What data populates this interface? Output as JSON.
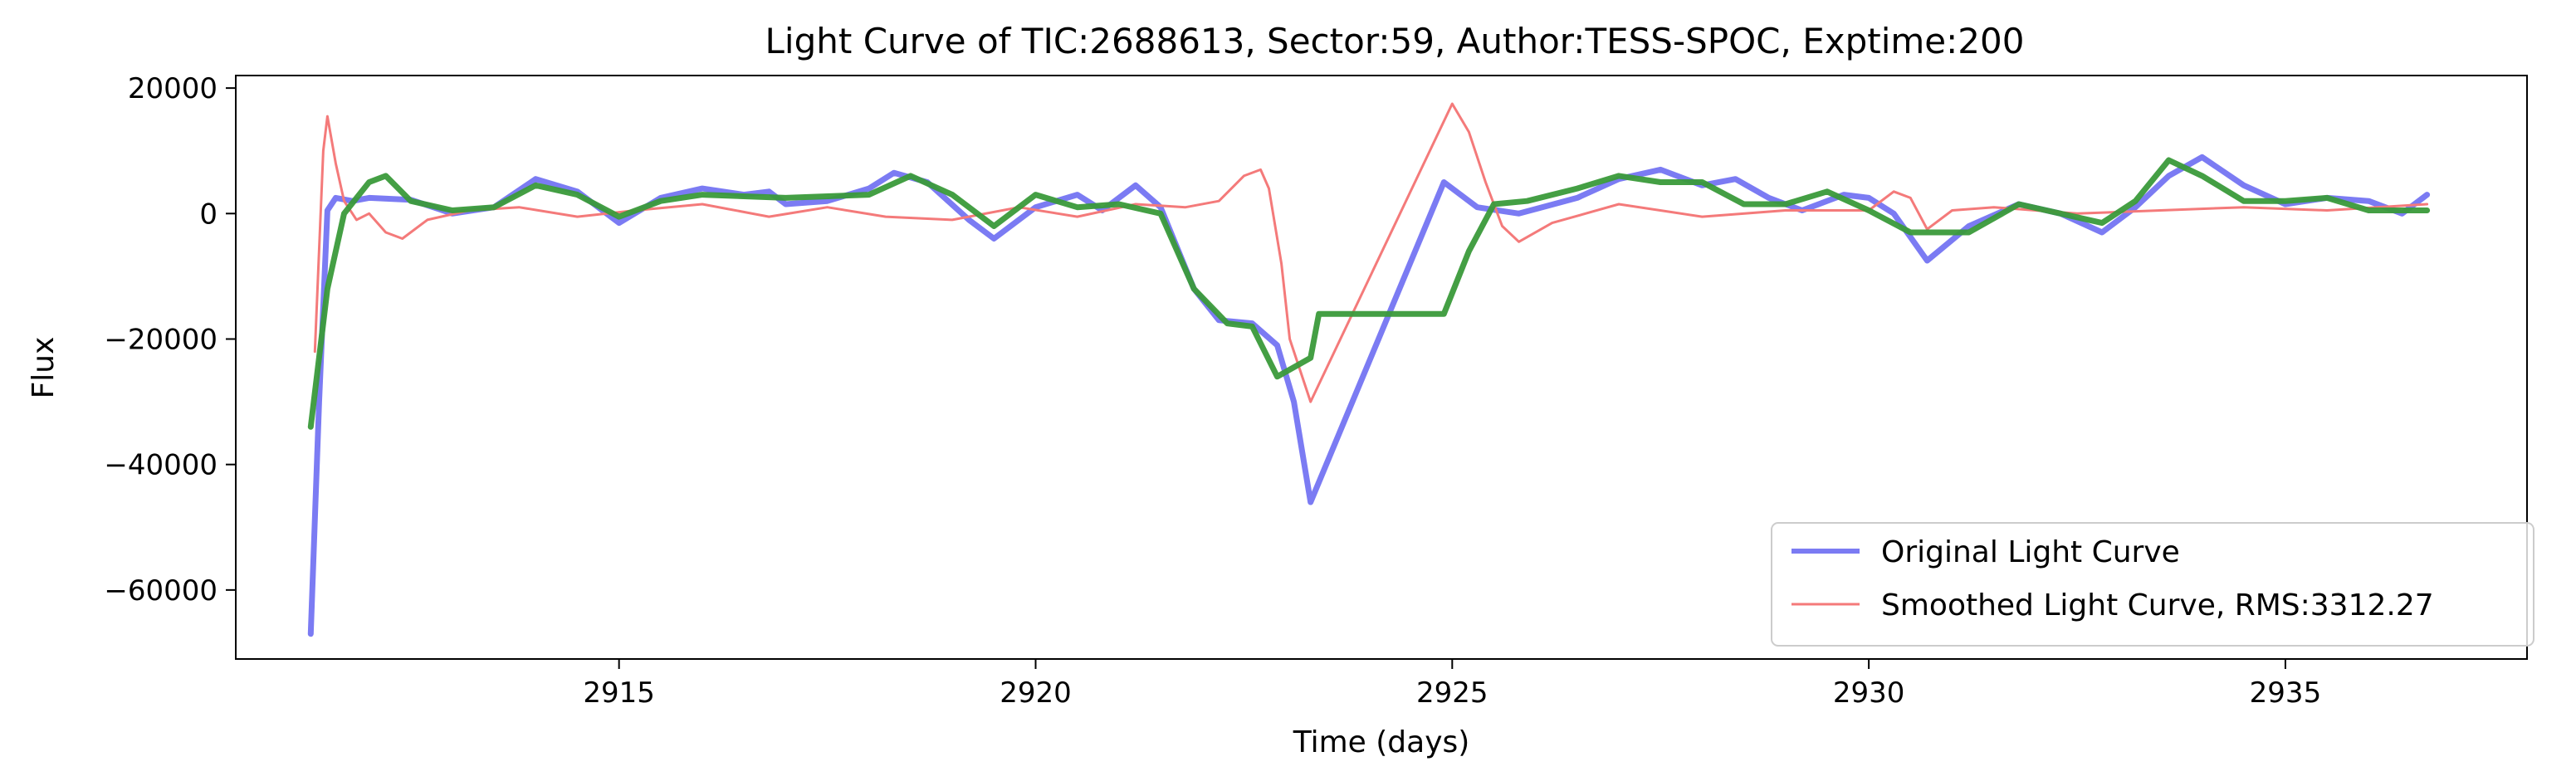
{
  "chart_data": {
    "type": "line",
    "title": "Light Curve of TIC:2688613, Sector:59, Author:TESS-SPOC, Exptime:200",
    "xlabel": "Time (days)",
    "ylabel": "Flux",
    "xlim": [
      2910.4,
      2937.9
    ],
    "ylim": [
      -71000,
      22000
    ],
    "xticks": [
      2915,
      2920,
      2925,
      2930,
      2935
    ],
    "yticks": [
      -60000,
      -40000,
      -20000,
      0,
      20000
    ],
    "xtick_labels": [
      "2915",
      "2920",
      "2925",
      "2930",
      "2935"
    ],
    "ytick_labels": [
      "−60000",
      "−40000",
      "−20000",
      "0",
      "20000"
    ],
    "grid": false,
    "legend_position": "bottom-right",
    "series": [
      {
        "name": "Original Light Curve",
        "color": "#7b7bf3",
        "x": [
          2911.3,
          2911.4,
          2911.5,
          2911.6,
          2911.8,
          2912.0,
          2912.5,
          2913.0,
          2913.5,
          2914.0,
          2914.5,
          2915.0,
          2915.5,
          2916.0,
          2916.5,
          2916.8,
          2917.0,
          2917.5,
          2918.0,
          2918.3,
          2918.7,
          2919.2,
          2919.5,
          2920.0,
          2920.5,
          2920.8,
          2921.2,
          2921.5,
          2921.9,
          2922.2,
          2922.6,
          2922.9,
          2923.1,
          2923.3,
          2924.9,
          2925.3,
          2925.8,
          2926.5,
          2927.0,
          2927.5,
          2928.0,
          2928.4,
          2928.8,
          2929.2,
          2929.7,
          2930.0,
          2930.3,
          2930.7,
          2931.2,
          2931.8,
          2932.3,
          2932.8,
          2933.2,
          2933.6,
          2934.0,
          2934.5,
          2935.0,
          2935.5,
          2936.0,
          2936.4,
          2936.7
        ],
        "values": [
          -67000,
          -30000,
          500,
          2500,
          2000,
          2500,
          2200,
          0,
          1000,
          5500,
          3500,
          -1500,
          2500,
          4000,
          3000,
          3500,
          1500,
          2000,
          4000,
          6500,
          5000,
          -1000,
          -4000,
          1000,
          3000,
          500,
          4500,
          1000,
          -12000,
          -17000,
          -17500,
          -21000,
          -30000,
          -46000,
          5000,
          1000,
          0,
          2500,
          5500,
          7000,
          4500,
          5500,
          2500,
          500,
          3000,
          2500,
          0,
          -7500,
          -2000,
          1500,
          0,
          -3000,
          1000,
          6000,
          9000,
          4500,
          1500,
          2500,
          2000,
          0,
          3000
        ]
      },
      {
        "name": "Smoothed Light Curve, RMS:3312.27",
        "color": "#f47a7a",
        "x": [
          2911.35,
          2911.45,
          2911.5,
          2911.6,
          2911.7,
          2911.85,
          2912.0,
          2912.2,
          2912.4,
          2912.7,
          2913.2,
          2913.8,
          2914.5,
          2915.2,
          2916.0,
          2916.8,
          2917.5,
          2918.2,
          2919.0,
          2919.8,
          2920.5,
          2921.2,
          2921.8,
          2922.2,
          2922.5,
          2922.7,
          2922.8,
          2922.95,
          2923.05,
          2923.3,
          2925.0,
          2925.2,
          2925.4,
          2925.6,
          2925.8,
          2926.2,
          2927.0,
          2928.0,
          2929.0,
          2930.0,
          2930.3,
          2930.5,
          2930.7,
          2931.0,
          2931.5,
          2932.5,
          2933.5,
          2934.5,
          2935.5,
          2936.7
        ],
        "values": [
          -22000,
          10000,
          15500,
          8000,
          2000,
          -1000,
          0,
          -3000,
          -4000,
          -1000,
          500,
          1000,
          -500,
          500,
          1500,
          -500,
          1000,
          -500,
          -1000,
          1000,
          -500,
          1500,
          1000,
          2000,
          6000,
          7000,
          4000,
          -8000,
          -20000,
          -30000,
          17500,
          13000,
          5000,
          -2000,
          -4500,
          -1500,
          1500,
          -500,
          500,
          500,
          3500,
          2500,
          -2500,
          500,
          1000,
          0,
          500,
          1000,
          500,
          1500
        ]
      },
      {
        "name": "",
        "color": "#3a9a3a",
        "x": [
          2911.3,
          2911.5,
          2911.7,
          2912.0,
          2912.2,
          2912.5,
          2913.0,
          2913.5,
          2914.0,
          2914.5,
          2915.0,
          2915.5,
          2916.0,
          2917.0,
          2918.0,
          2918.5,
          2919.0,
          2919.5,
          2920.0,
          2920.5,
          2921.0,
          2921.5,
          2921.9,
          2922.3,
          2922.6,
          2922.9,
          2923.3,
          2923.4,
          2924.9,
          2925.2,
          2925.5,
          2925.9,
          2926.5,
          2927.0,
          2927.5,
          2928.0,
          2928.5,
          2929.0,
          2929.5,
          2930.0,
          2930.5,
          2931.2,
          2931.8,
          2932.3,
          2932.8,
          2933.2,
          2933.6,
          2934.0,
          2934.5,
          2935.0,
          2935.5,
          2936.0,
          2936.7
        ],
        "values": [
          -34000,
          -12000,
          0,
          5000,
          6000,
          2000,
          500,
          1000,
          4500,
          3000,
          -500,
          2000,
          3000,
          2500,
          3000,
          6000,
          3000,
          -2000,
          3000,
          1000,
          1500,
          0,
          -12000,
          -17500,
          -18000,
          -26000,
          -23000,
          -16000,
          -16000,
          -6000,
          1500,
          2000,
          4000,
          6000,
          5000,
          5000,
          1500,
          1500,
          3500,
          500,
          -3000,
          -3000,
          1500,
          0,
          -1500,
          2000,
          8500,
          6000,
          2000,
          2000,
          2500,
          500,
          500
        ]
      }
    ]
  }
}
